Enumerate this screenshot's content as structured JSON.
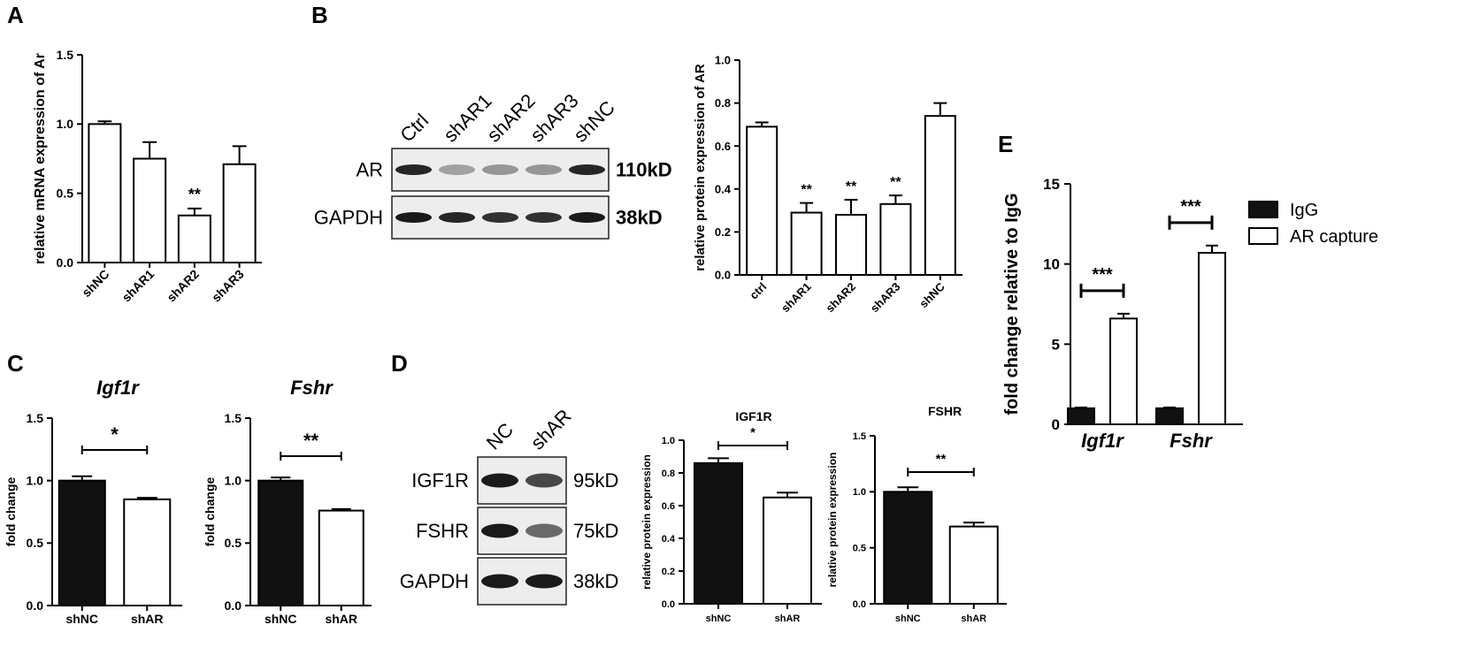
{
  "panel_letters": [
    "A",
    "B",
    "C",
    "D",
    "E"
  ],
  "blot_b": {
    "lanes": [
      "Ctrl",
      "shAR1",
      "shAR2",
      "shAR3",
      "shNC"
    ],
    "bands": [
      {
        "name": "AR",
        "size": "110kD",
        "intensity": [
          0.9,
          0.35,
          0.4,
          0.4,
          0.9
        ]
      },
      {
        "name": "GAPDH",
        "size": "38kD",
        "intensity": [
          0.95,
          0.9,
          0.85,
          0.85,
          0.95
        ]
      }
    ]
  },
  "blot_d": {
    "lanes": [
      "NC",
      "shAR"
    ],
    "bands": [
      {
        "name": "IGF1R",
        "size": "95kD",
        "intensity": [
          0.95,
          0.75
        ]
      },
      {
        "name": "FSHR",
        "size": "75kD",
        "intensity": [
          0.95,
          0.6
        ]
      },
      {
        "name": "GAPDH",
        "size": "38kD",
        "intensity": [
          0.95,
          0.95
        ]
      }
    ]
  },
  "chart_data": [
    {
      "id": "A",
      "type": "bar",
      "title": "",
      "xlabel": "",
      "ylabel": "relative mRNA expression of Ar",
      "categories": [
        "shNC",
        "shAR1",
        "shAR2",
        "shAR3"
      ],
      "values": [
        1.0,
        0.75,
        0.34,
        0.71
      ],
      "errors": [
        0.02,
        0.12,
        0.05,
        0.13
      ],
      "significance": [
        "",
        "",
        "**",
        ""
      ],
      "fills": [
        "#ffffff",
        "#ffffff",
        "#ffffff",
        "#ffffff"
      ],
      "ylim": [
        0,
        1.5
      ],
      "yticks": [
        "0.0",
        "0.5",
        "1.0",
        "1.5"
      ]
    },
    {
      "id": "B",
      "type": "bar",
      "title": "",
      "xlabel": "",
      "ylabel": "relative protein expression of AR",
      "categories": [
        "ctrl",
        "shAR1",
        "shAR2",
        "shAR3",
        "shNC"
      ],
      "values": [
        0.69,
        0.29,
        0.28,
        0.33,
        0.74
      ],
      "errors": [
        0.02,
        0.045,
        0.07,
        0.04,
        0.06
      ],
      "significance": [
        "",
        "**",
        "**",
        "**",
        ""
      ],
      "fills": [
        "#ffffff",
        "#ffffff",
        "#ffffff",
        "#ffffff",
        "#ffffff"
      ],
      "ylim": [
        0,
        1.0
      ],
      "yticks": [
        "0.0",
        "0.2",
        "0.4",
        "0.6",
        "0.8",
        "1.0"
      ]
    },
    {
      "id": "C1",
      "type": "bar",
      "title": "Igf1r",
      "xlabel": "",
      "ylabel": "fold change",
      "categories": [
        "shNC",
        "shAR"
      ],
      "values": [
        1.0,
        0.85
      ],
      "errors": [
        0.035,
        0.012
      ],
      "comparison": "*",
      "fills": [
        "#111111",
        "#ffffff"
      ],
      "ylim": [
        0,
        1.5
      ],
      "yticks": [
        "0.0",
        "0.5",
        "1.0",
        "1.5"
      ]
    },
    {
      "id": "C2",
      "type": "bar",
      "title": "Fshr",
      "xlabel": "",
      "ylabel": "fold change",
      "categories": [
        "shNC",
        "shAR"
      ],
      "values": [
        1.0,
        0.76
      ],
      "errors": [
        0.025,
        0.012
      ],
      "comparison": "**",
      "fills": [
        "#111111",
        "#ffffff"
      ],
      "ylim": [
        0,
        1.5
      ],
      "yticks": [
        "0.0",
        "0.5",
        "1.0",
        "1.5"
      ]
    },
    {
      "id": "D1",
      "type": "bar",
      "title": "IGF1R",
      "xlabel": "",
      "ylabel": "relative protein expression",
      "categories": [
        "shNC",
        "shAR"
      ],
      "values": [
        0.86,
        0.65
      ],
      "errors": [
        0.03,
        0.03
      ],
      "comparison": "*",
      "fills": [
        "#111111",
        "#ffffff"
      ],
      "ylim": [
        0,
        1.0
      ],
      "yticks": [
        "0.0",
        "0.2",
        "0.4",
        "0.6",
        "0.8",
        "1.0"
      ]
    },
    {
      "id": "D2",
      "type": "bar",
      "title": "FSHR",
      "xlabel": "",
      "ylabel": "relative protein expression",
      "categories": [
        "shNC",
        "shAR"
      ],
      "values": [
        1.0,
        0.69
      ],
      "errors": [
        0.04,
        0.035
      ],
      "comparison": "**",
      "fills": [
        "#111111",
        "#ffffff"
      ],
      "ylim": [
        0,
        1.5
      ],
      "yticks": [
        "0.0",
        "0.5",
        "1.0",
        "1.5"
      ]
    },
    {
      "id": "E",
      "type": "bar",
      "title": "",
      "xlabel": "",
      "ylabel": "fold change relative to IgG",
      "categories": [
        "Igf1r",
        "Fshr"
      ],
      "series": [
        {
          "name": "IgG",
          "values": [
            1.0,
            1.0
          ],
          "errors": [
            0.05,
            0.05
          ],
          "color": "#111111"
        },
        {
          "name": "AR capture",
          "values": [
            6.6,
            10.7
          ],
          "errors": [
            0.3,
            0.45
          ],
          "color": "#ffffff"
        }
      ],
      "comparisons": [
        "***",
        "***"
      ],
      "legend": "top-right",
      "ylim": [
        0,
        15
      ],
      "yticks": [
        "0",
        "5",
        "10",
        "15"
      ]
    }
  ]
}
